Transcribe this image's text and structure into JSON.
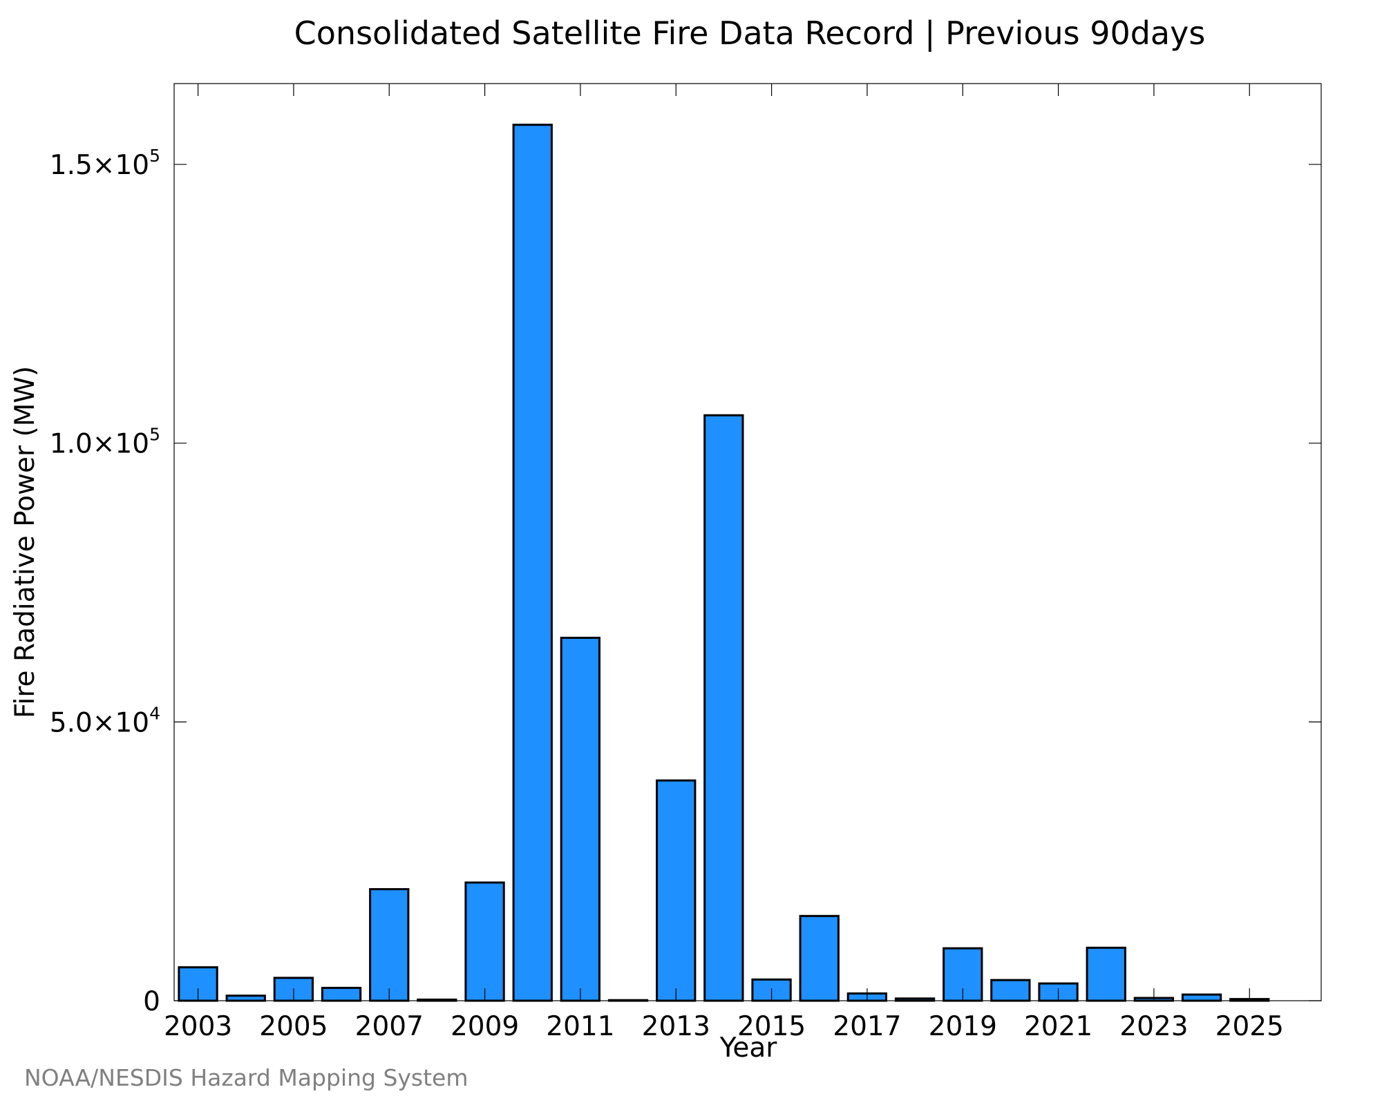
{
  "chart_data": {
    "type": "bar",
    "title": "Consolidated Satellite Fire Data Record | Previous 90days",
    "xlabel": "Year",
    "ylabel": "Fire Radiative Power (MW)",
    "credit": "NOAA/NESDIS Hazard Mapping System",
    "bar_color": "#1e90ff",
    "bar_edge_color": "#000000",
    "ylim": [
      0,
      164500
    ],
    "xlim": [
      2002.5,
      2026.5
    ],
    "grid": false,
    "legend": "none",
    "categories": [
      2003,
      2004,
      2005,
      2006,
      2007,
      2008,
      2009,
      2010,
      2011,
      2012,
      2013,
      2014,
      2015,
      2016,
      2017,
      2018,
      2019,
      2020,
      2021,
      2022,
      2023,
      2024,
      2025
    ],
    "values": [
      6000,
      900,
      4100,
      2300,
      20000,
      200,
      21200,
      157100,
      65100,
      100,
      39500,
      105000,
      3800,
      15200,
      1300,
      400,
      9400,
      3700,
      3100,
      9500,
      500,
      1100,
      300
    ],
    "x_ticks": [
      {
        "value": 2003,
        "label": "2003"
      },
      {
        "value": 2005,
        "label": "2005"
      },
      {
        "value": 2007,
        "label": "2007"
      },
      {
        "value": 2009,
        "label": "2009"
      },
      {
        "value": 2011,
        "label": "2011"
      },
      {
        "value": 2013,
        "label": "2013"
      },
      {
        "value": 2015,
        "label": "2015"
      },
      {
        "value": 2017,
        "label": "2017"
      },
      {
        "value": 2019,
        "label": "2019"
      },
      {
        "value": 2021,
        "label": "2021"
      },
      {
        "value": 2023,
        "label": "2023"
      },
      {
        "value": 2025,
        "label": "2025"
      }
    ],
    "y_ticks": [
      {
        "value": 0,
        "mantissa": "0",
        "exponent": ""
      },
      {
        "value": 50000,
        "mantissa": "5.0×10",
        "exponent": "4"
      },
      {
        "value": 100000,
        "mantissa": "1.0×10",
        "exponent": "5"
      },
      {
        "value": 150000,
        "mantissa": "1.5×10",
        "exponent": "5"
      }
    ]
  }
}
